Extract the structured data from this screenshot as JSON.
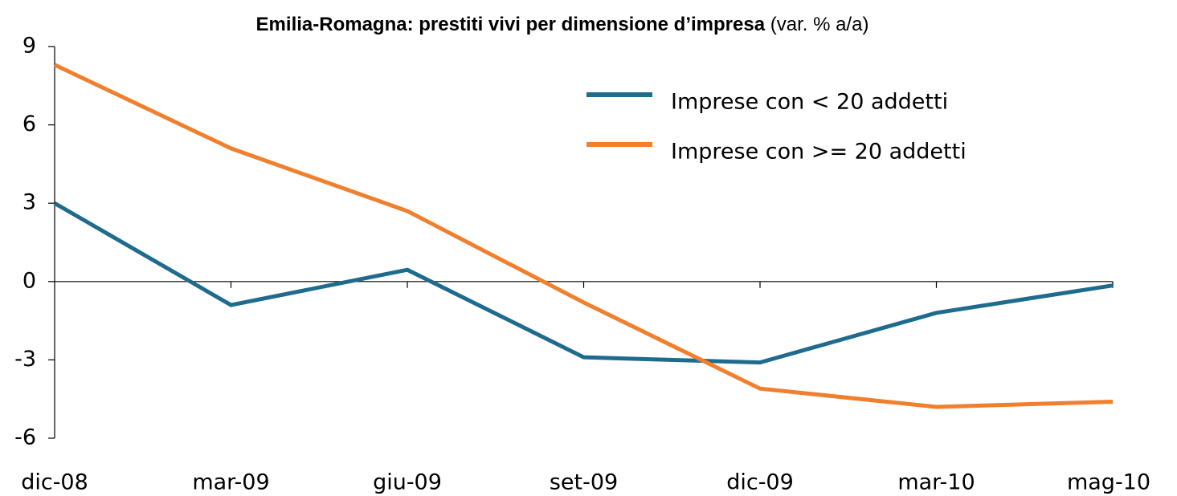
{
  "chart_data": {
    "type": "line",
    "title": "Emilia-Romagna: prestiti vivi per dimensione d’impresa",
    "subtitle": "(var. % a/a)",
    "categories": [
      "dic-08",
      "mar-09",
      "giu-09",
      "set-09",
      "dic-09",
      "mar-10",
      "mag-10"
    ],
    "series": [
      {
        "name": "Imprese con < 20 addetti",
        "color": "#1f6b8e",
        "values": [
          3.0,
          -0.9,
          0.45,
          -2.9,
          -3.1,
          -1.2,
          -0.15
        ]
      },
      {
        "name": "Imprese con >= 20 addetti",
        "color": "#f07f2e",
        "values": [
          8.3,
          5.1,
          2.7,
          -0.8,
          -4.1,
          -4.8,
          -4.6
        ]
      }
    ],
    "ylim": [
      -6,
      9
    ],
    "yticks": [
      -6,
      -3,
      0,
      3,
      6,
      9
    ]
  }
}
